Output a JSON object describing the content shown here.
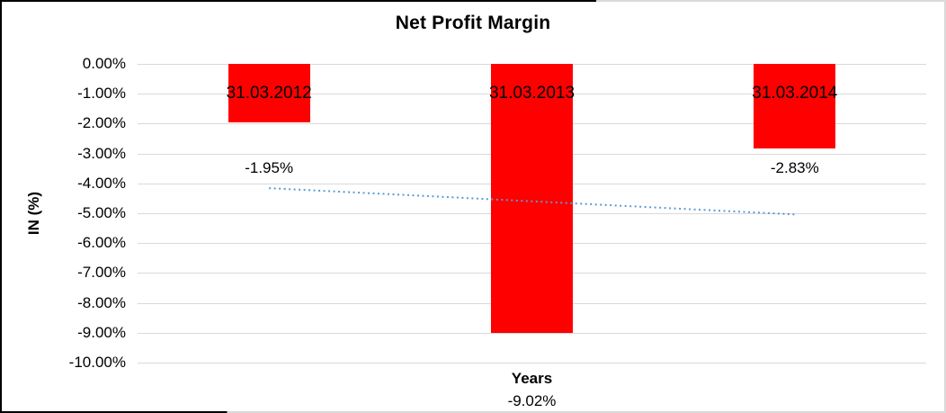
{
  "chart_data": {
    "type": "bar",
    "title": "Net Profit Margin",
    "xlabel": "Years",
    "ylabel": "IN (%)",
    "categories": [
      "31.03.2012",
      "31.03.2013",
      "31.03.2014"
    ],
    "values": [
      -1.95,
      -9.02,
      -2.83
    ],
    "data_labels": [
      "-1.95%",
      "-9.02%",
      "-2.83%"
    ],
    "ylim": [
      -10,
      0
    ],
    "ytick_step": 1,
    "ytick_labels": [
      "0.00%",
      "-1.00%",
      "-2.00%",
      "-3.00%",
      "-4.00%",
      "-5.00%",
      "-6.00%",
      "-7.00%",
      "-8.00%",
      "-9.00%",
      "-10.00%"
    ],
    "grid": true,
    "gridline_color": "#d9d9d9",
    "bar_color": "#ff0000",
    "legend_position": "none",
    "trendline": {
      "type": "linear",
      "style": "dotted",
      "color": "#5b9bd5",
      "points": [
        {
          "category": "31.03.2012",
          "value": -4.16
        },
        {
          "category": "31.03.2014",
          "value": -5.04
        }
      ]
    }
  }
}
